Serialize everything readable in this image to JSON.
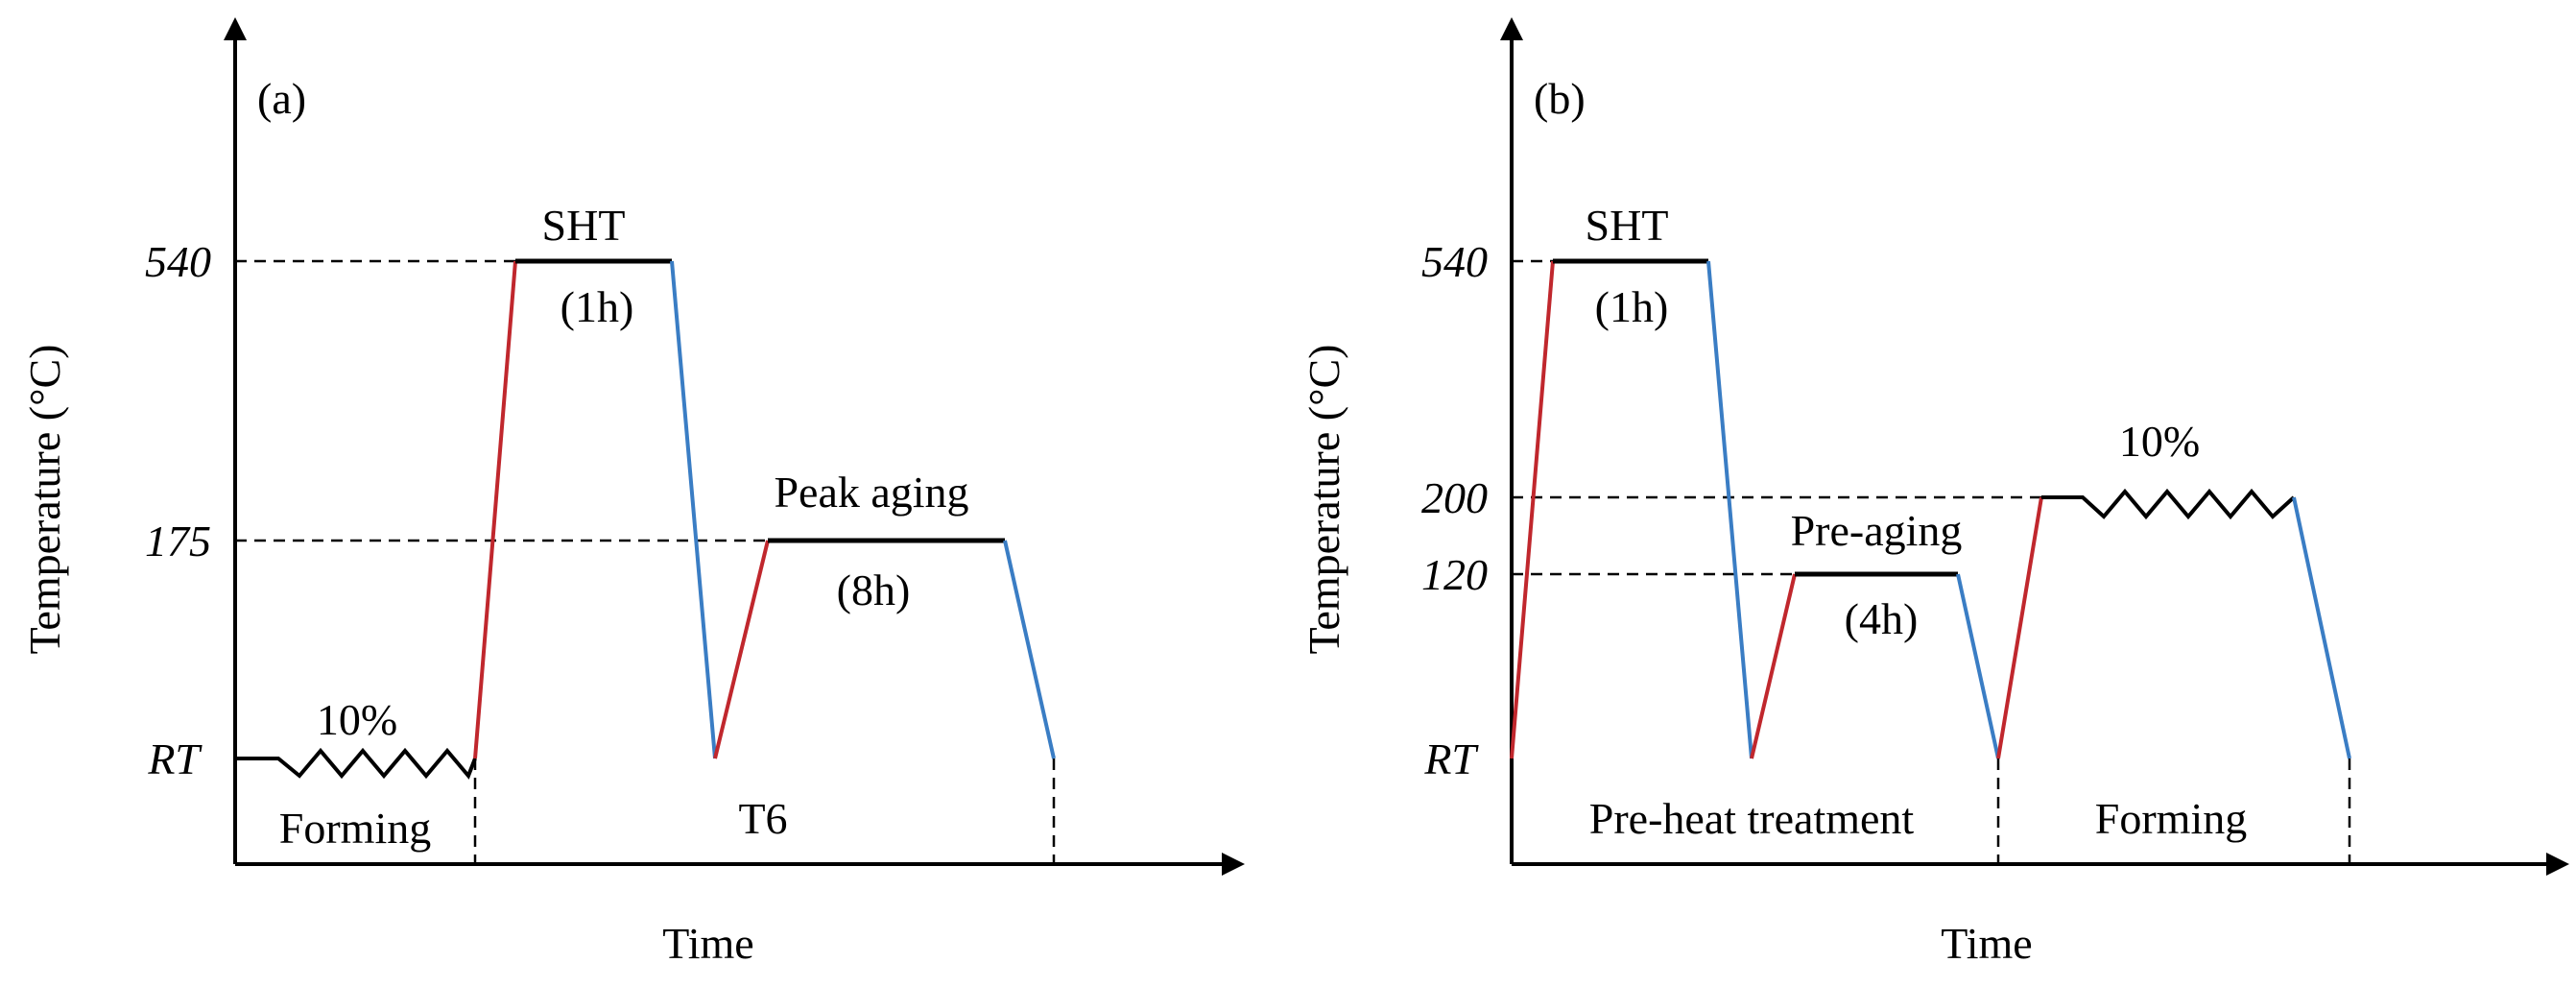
{
  "colors": {
    "axis": "#000000",
    "heating": "#c0272d",
    "cooling": "#3a7dc4",
    "dashed": "#000000"
  },
  "panel_a": {
    "label": "(a)",
    "y_axis_title": "Temperature (°C)",
    "x_axis_title": "Time",
    "y_ticks": [
      "540",
      "175",
      "RT"
    ],
    "steps": {
      "forming_strain": "10%",
      "forming": "Forming",
      "sht": "SHT",
      "sht_time": "(1h)",
      "peak_aging": "Peak aging",
      "peak_aging_time": "(8h)",
      "t6": "T6"
    }
  },
  "panel_b": {
    "label": "(b)",
    "y_axis_title": "Temperature (°C)",
    "x_axis_title": "Time",
    "y_ticks": [
      "540",
      "200",
      "120",
      "RT"
    ],
    "steps": {
      "sht": "SHT",
      "sht_time": "(1h)",
      "pre_aging": "Pre-aging",
      "pre_aging_time": "(4h)",
      "pre_heat_treatment": "Pre-heat treatment",
      "forming_strain": "10%",
      "forming": "Forming"
    }
  }
}
